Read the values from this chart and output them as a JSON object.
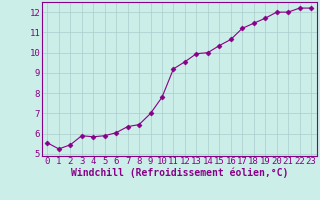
{
  "x": [
    0,
    1,
    2,
    3,
    4,
    5,
    6,
    7,
    8,
    9,
    10,
    11,
    12,
    13,
    14,
    15,
    16,
    17,
    18,
    19,
    20,
    21,
    22,
    23
  ],
  "y": [
    5.55,
    5.25,
    5.45,
    5.9,
    5.85,
    5.9,
    6.05,
    6.35,
    6.45,
    7.0,
    7.8,
    9.2,
    9.55,
    9.95,
    10.0,
    10.35,
    10.65,
    11.2,
    11.45,
    11.7,
    12.0,
    12.0,
    12.2,
    12.2
  ],
  "line_color": "#880088",
  "marker": "D",
  "marker_size": 2.5,
  "bg_color": "#cceee8",
  "grid_color": "#aacccc",
  "xlabel": "Windchill (Refroidissement éolien,°C)",
  "xlabel_color": "#880088",
  "tick_color": "#880088",
  "spine_color": "#880088",
  "ylim": [
    4.9,
    12.5
  ],
  "xlim": [
    -0.5,
    23.5
  ],
  "yticks": [
    5,
    6,
    7,
    8,
    9,
    10,
    11,
    12
  ],
  "xticks": [
    0,
    1,
    2,
    3,
    4,
    5,
    6,
    7,
    8,
    9,
    10,
    11,
    12,
    13,
    14,
    15,
    16,
    17,
    18,
    19,
    20,
    21,
    22,
    23
  ],
  "font_size": 6.5,
  "label_font_size": 7
}
